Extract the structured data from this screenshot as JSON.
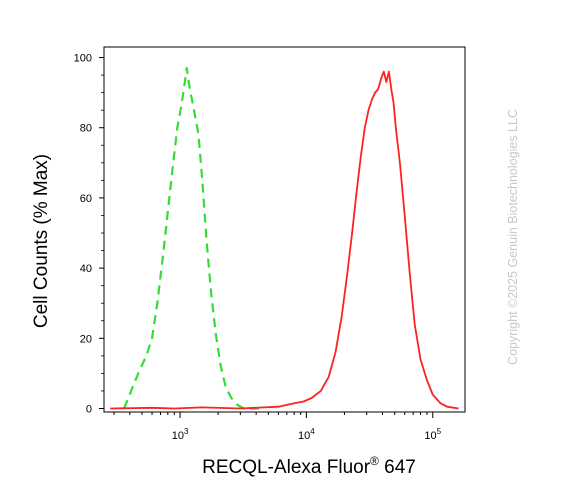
{
  "chart_data": {
    "type": "line",
    "xlabel": "RECQL-Alexa Fluor",
    "xlabel_superscript": "®",
    "xlabel_suffix": " 647",
    "ylabel": "Cell Counts (% Max)",
    "x_scale": "log",
    "xlim": [
      250,
      180000
    ],
    "ylim": [
      -1,
      103
    ],
    "y_ticks": [
      0,
      20,
      40,
      60,
      80,
      100
    ],
    "y_tick_labels": [
      "0",
      "20",
      "40",
      "60",
      "80",
      "100"
    ],
    "x_ticks": [
      1000,
      10000,
      100000
    ],
    "x_tick_labels": [
      {
        "base": "10",
        "exp": "3"
      },
      {
        "base": "10",
        "exp": "4"
      },
      {
        "base": "10",
        "exp": "5"
      }
    ],
    "watermark": "Copyright ©2025 Genuin Biotechnologies LLC",
    "series": [
      {
        "color": "#33dd33",
        "dash": "dashed",
        "x": [
          360,
          390,
          430,
          480,
          540,
          600,
          660,
          730,
          800,
          870,
          950,
          1020,
          1080,
          1130,
          1170,
          1210,
          1260,
          1320,
          1400,
          1500,
          1620,
          1760,
          1920,
          2100,
          2300,
          2550,
          2850,
          3200,
          3600,
          4000,
          4500
        ],
        "y": [
          0,
          3,
          7,
          11,
          15,
          20,
          30,
          43,
          56,
          68,
          80,
          86,
          92,
          97,
          93,
          90,
          87,
          83,
          78,
          65,
          48,
          33,
          21,
          12,
          6,
          3,
          1,
          0,
          0,
          0,
          0
        ]
      },
      {
        "color": "#ff2020",
        "dash": "solid",
        "x": [
          280,
          600,
          900,
          1500,
          3000,
          6000,
          8000,
          9500,
          11000,
          13000,
          15000,
          17000,
          19000,
          21000,
          23000,
          25000,
          27000,
          29000,
          31000,
          33000,
          35000,
          37000,
          39000,
          41000,
          43000,
          45000,
          47000,
          49000,
          51000,
          55000,
          60000,
          66000,
          72000,
          80000,
          90000,
          100000,
          115000,
          130000,
          160000
        ],
        "y": [
          0,
          0.2,
          0,
          0.3,
          0,
          0.5,
          1.5,
          2,
          3,
          5,
          9,
          16,
          26,
          38,
          50,
          62,
          72,
          80,
          85,
          88,
          90,
          91,
          94,
          96,
          93,
          96,
          91,
          87,
          80,
          70,
          55,
          38,
          24,
          14,
          8,
          4,
          1.5,
          0.5,
          0
        ]
      }
    ]
  }
}
